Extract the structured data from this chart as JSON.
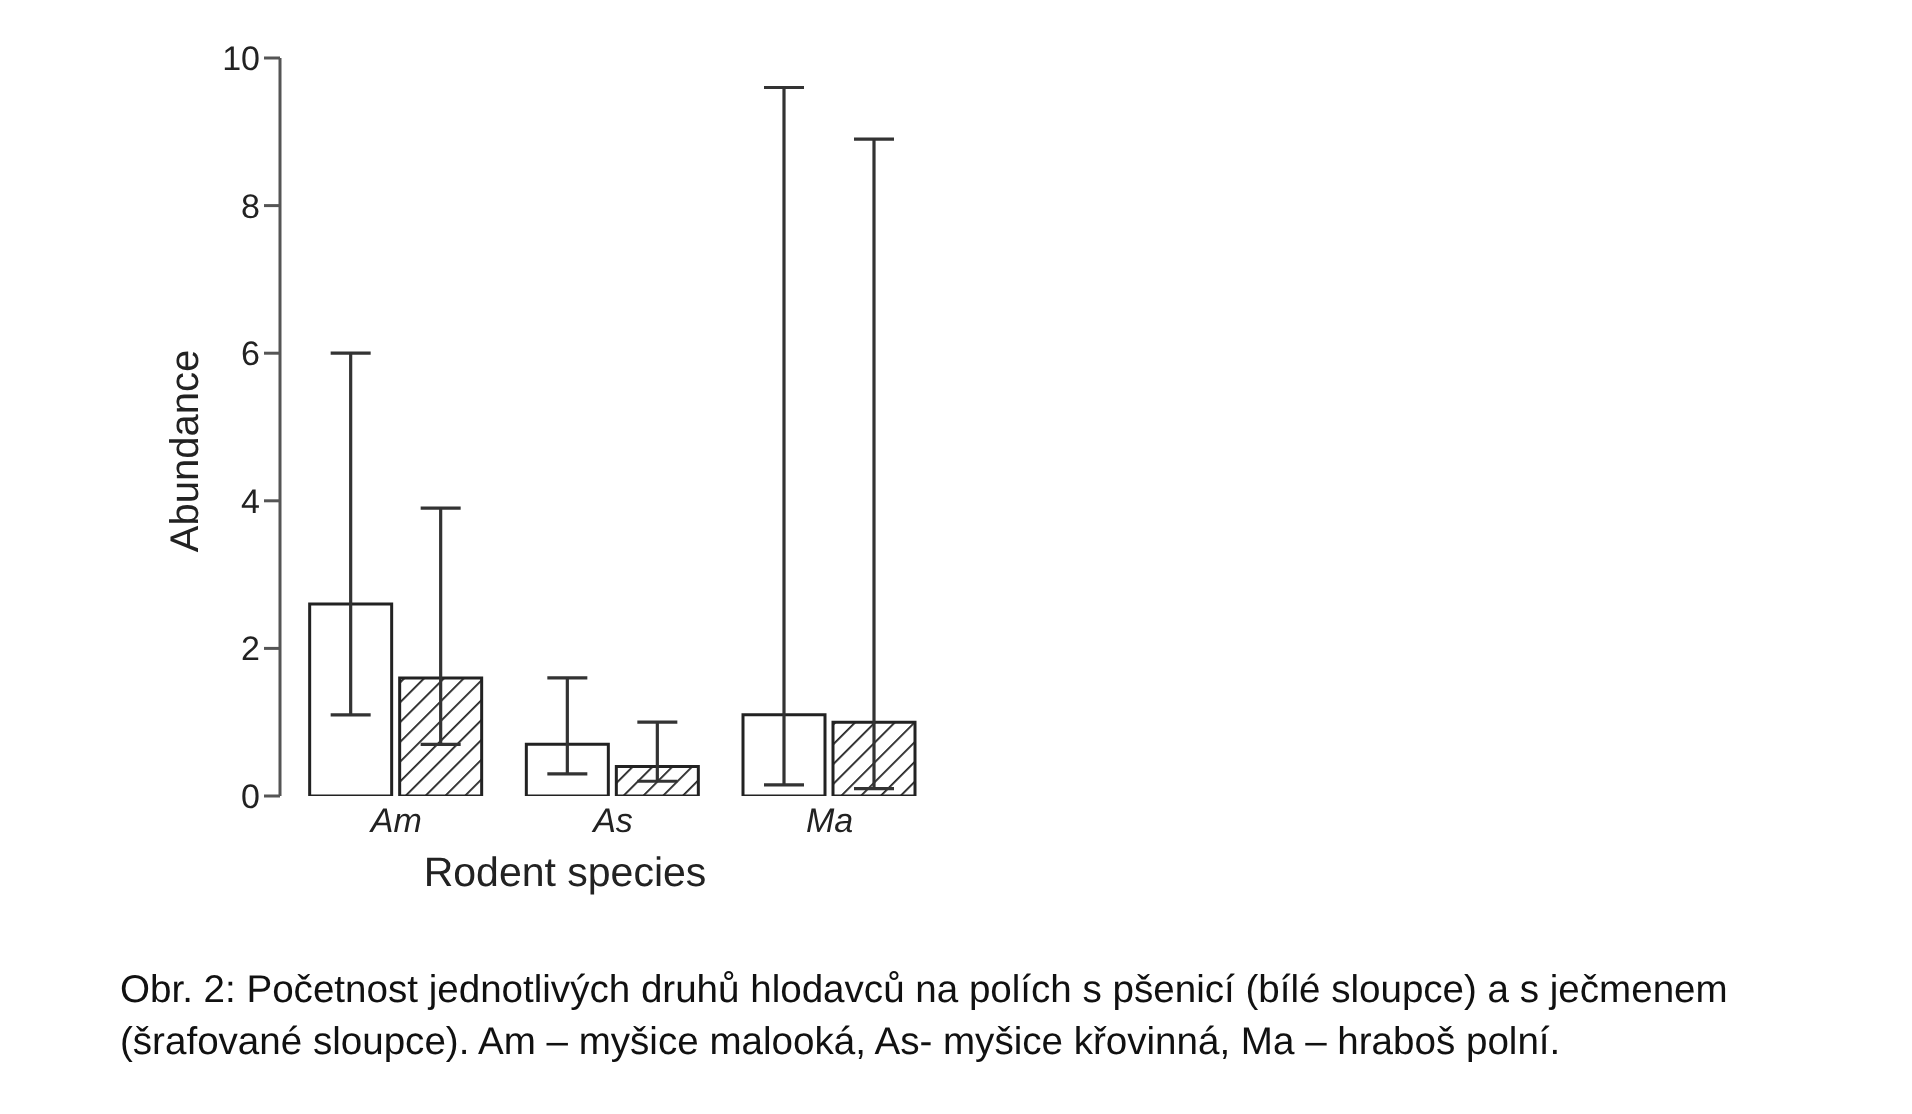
{
  "chart_data": {
    "type": "bar",
    "xlabel": "Rodent species",
    "ylabel": "Abundance",
    "categories": [
      "Am",
      "As",
      "Ma"
    ],
    "series": [
      {
        "color": "#ffffff",
        "values": [
          2.6,
          0.7,
          1.1
        ],
        "errors": [
          [
            1.1,
            6.0
          ],
          [
            0.3,
            1.6
          ],
          [
            0.15,
            9.6
          ]
        ]
      },
      {
        "color": "#222222",
        "values": [
          1.6,
          0.4,
          1.0
        ],
        "errors": [
          [
            0.7,
            3.9
          ],
          [
            0.2,
            1.0
          ],
          [
            0.1,
            8.9
          ]
        ]
      }
    ],
    "ylim": [
      0,
      10
    ],
    "yticks": [
      0,
      2,
      4,
      6,
      8,
      10
    ],
    "annotations": [
      "Obr. 2: Početnost jednotlivých druhů hlodavců na polích s pšenicí (bílé sloupce) a s ječmenem (šrafované sloupce). Am – myšice malooká, As- myšice křovinná, Ma – hraboš polní."
    ]
  }
}
